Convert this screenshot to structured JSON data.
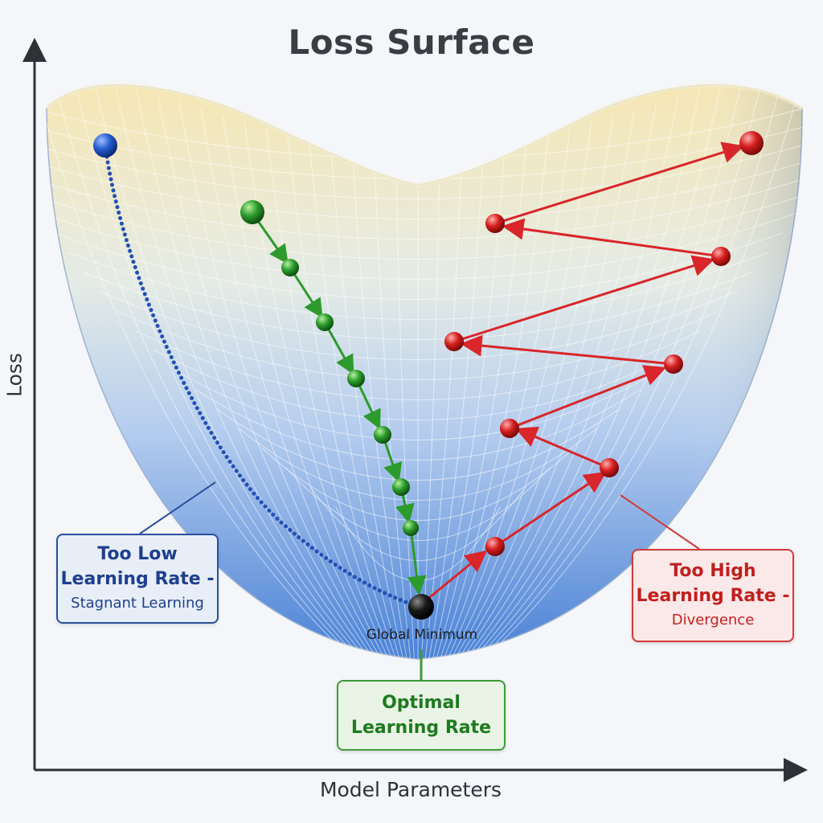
{
  "title": "Loss Surface",
  "axes": {
    "x_label": "Model Parameters",
    "y_label": "Loss"
  },
  "minimum_label": "Global Minimum",
  "callouts": {
    "too_low": {
      "line1": "Too Low",
      "line2": "Learning Rate -",
      "line3": "Stagnant Learning"
    },
    "optimal": {
      "line1": "Optimal",
      "line2": "Learning Rate"
    },
    "too_high": {
      "line1": "Too High",
      "line2": "Learning Rate -",
      "line3": "Divergence"
    }
  },
  "colors": {
    "low_path": "#2450b4",
    "optimal_path": "#2c9a2c",
    "high_path": "#d8262a",
    "minimum_ball": "#111111",
    "surface_top": "#f5e8b8",
    "surface_bottom": "#4f86d6"
  }
}
